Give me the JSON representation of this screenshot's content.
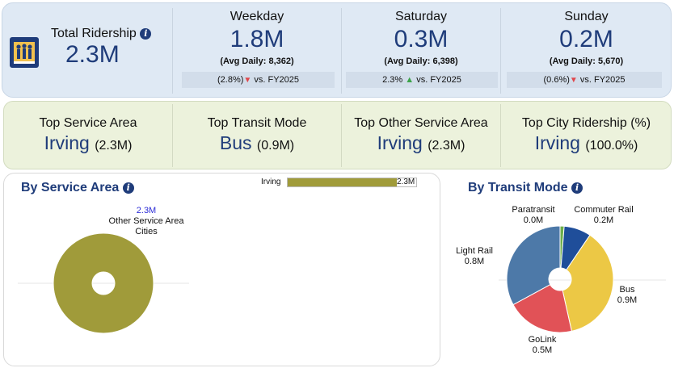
{
  "total": {
    "label": "Total Ridership",
    "value": "2.3M"
  },
  "days": [
    {
      "name": "Weekday",
      "value": "1.8M",
      "avg": "(Avg Daily: 8,362)",
      "change": "(2.8%)",
      "direction": "down",
      "vs": "vs. FY2025"
    },
    {
      "name": "Saturday",
      "value": "0.3M",
      "avg": "(Avg Daily: 6,398)",
      "change": "2.3%",
      "direction": "up",
      "vs": "vs. FY2025"
    },
    {
      "name": "Sunday",
      "value": "0.2M",
      "avg": "(Avg Daily: 5,670)",
      "change": "(0.6%)",
      "direction": "down",
      "vs": "vs. FY2025"
    }
  ],
  "tops": [
    {
      "label": "Top Service Area",
      "value": "Irving",
      "sub": "(2.3M)"
    },
    {
      "label": "Top Transit Mode",
      "value": "Bus",
      "sub": "(0.9M)"
    },
    {
      "label": "Top Other Service Area",
      "value": "Irving",
      "sub": "(2.3M)"
    },
    {
      "label": "Top City Ridership (%)",
      "value": "Irving",
      "sub": "(100.0%)"
    }
  ],
  "service_area": {
    "title": "By Service Area",
    "bar": {
      "label": "Irving",
      "value_label": "2.3M",
      "fraction": 0.85
    },
    "donut_value": "2.3M",
    "donut_label_line1": "Other Service Area",
    "donut_label_line2": "Cities"
  },
  "transit_mode": {
    "title": "By Transit Mode"
  },
  "chart_data": [
    {
      "type": "pie",
      "title": "By Service Area",
      "labels": [
        "Other Service Area Cities"
      ],
      "values": [
        2.3
      ],
      "value_labels": [
        "2.3M"
      ],
      "colors": [
        "#a09b3a"
      ]
    },
    {
      "type": "pie",
      "title": "By Transit Mode",
      "labels": [
        "Paratransit",
        "Commuter Rail",
        "Bus",
        "GoLink",
        "Light Rail"
      ],
      "values": [
        0.03,
        0.2,
        0.9,
        0.5,
        0.8
      ],
      "value_labels": [
        "0.0M",
        "0.2M",
        "0.9M",
        "0.5M",
        "0.8M"
      ],
      "colors": [
        "#6cae4a",
        "#1f4e9a",
        "#ecc845",
        "#e15257",
        "#4d79a8"
      ]
    }
  ],
  "colors": {
    "accent": "#1f3c7a",
    "kpi_bg": "#dfe9f4",
    "stats_bg": "#ecf2dc",
    "down": "#e0474c",
    "up": "#3ca34a"
  }
}
